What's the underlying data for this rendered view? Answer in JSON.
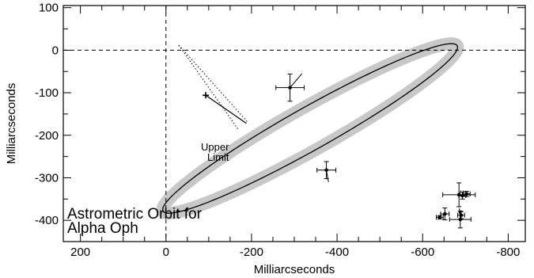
{
  "chart_data": {
    "type": "scatter",
    "title": "Astrometric Orbit for\nAlpha Oph",
    "xlabel": "Milliarcseconds",
    "ylabel": "Milliarcseconds",
    "xlim": [
      240,
      -840
    ],
    "ylim": [
      -450,
      105
    ],
    "x_ticks": [
      200,
      0,
      -200,
      -400,
      -600,
      -800
    ],
    "y_ticks": [
      100,
      0,
      -100,
      -200,
      -300,
      -400
    ],
    "grid": false,
    "reference_lines": {
      "x": 0,
      "y": 0,
      "style": "dashed"
    },
    "orbit": {
      "center": [
        -337,
        -184
      ],
      "semi_major": 395,
      "semi_minor": 50,
      "angle_deg": -29.5,
      "band_color": "#c8c8c8",
      "line_color": "#000000"
    },
    "observations": [
      {
        "x": -290,
        "y": -88,
        "xerr": 33,
        "yerr": 32,
        "model_x": -318,
        "model_y": -55
      },
      {
        "x": -375,
        "y": -282,
        "xerr": 22,
        "yerr": 20,
        "model_x": -380,
        "model_y": -310
      },
      {
        "x": -640,
        "y": -393,
        "xerr": 8,
        "yerr": 4,
        "model_x": -635,
        "model_y": -392
      },
      {
        "x": -652,
        "y": -385,
        "xerr": 10,
        "yerr": 14,
        "model_x": -648,
        "model_y": -388
      },
      {
        "x": -690,
        "y": -388,
        "xerr": 8,
        "yerr": 8,
        "model_x": -684,
        "model_y": -380
      },
      {
        "x": -688,
        "y": -398,
        "xerr": 25,
        "yerr": 20,
        "model_x": -686,
        "model_y": -372
      },
      {
        "x": -685,
        "y": -340,
        "xerr": 38,
        "yerr": 28,
        "model_x": -690,
        "model_y": -330
      },
      {
        "x": -693,
        "y": -342,
        "xerr": 8,
        "yerr": 8,
        "model_x": -695,
        "model_y": -330
      },
      {
        "x": -703,
        "y": -338,
        "xerr": 8,
        "yerr": 6,
        "model_x": -700,
        "model_y": -332
      }
    ],
    "upper_limit": {
      "point": [
        -93,
        -106
      ],
      "label_line1": "Upper",
      "label_line2": "Limit"
    },
    "title_line1": "Astrometric Orbit for",
    "title_line2": "Alpha Oph"
  }
}
